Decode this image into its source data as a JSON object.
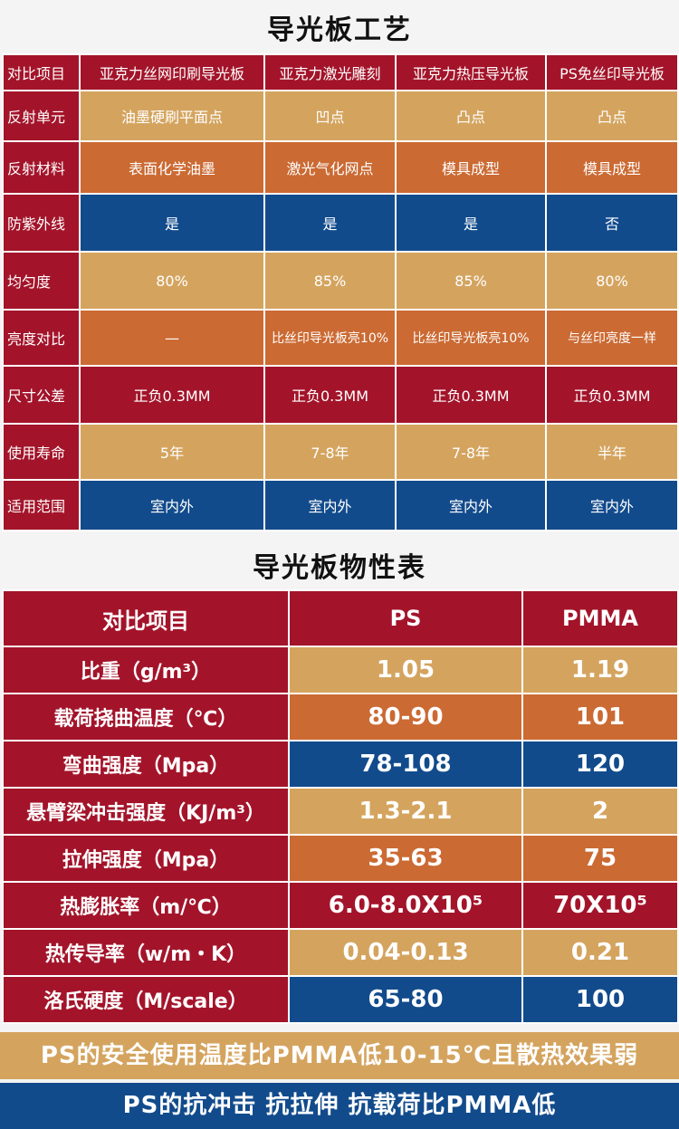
{
  "process_title": "导光板工艺",
  "process_table": {
    "headers": [
      "对比项目",
      "亚克力丝网印刷导光板",
      "亚克力激光雕刻",
      "亚克力热压导光板",
      "PS免丝印导光板"
    ],
    "rows": [
      {
        "label": "反射单元",
        "cells": [
          "油墨硬刷平面点",
          "凹点",
          "凸点",
          "凸点"
        ]
      },
      {
        "label": "反射材料",
        "cells": [
          "表面化学油墨",
          "激光气化网点",
          "模具成型",
          "模具成型"
        ]
      },
      {
        "label": "防紫外线",
        "cells": [
          "是",
          "是",
          "是",
          "否"
        ]
      },
      {
        "label": "均匀度",
        "cells": [
          "80%",
          "85%",
          "85%",
          "80%"
        ]
      },
      {
        "label": "亮度对比",
        "cells": [
          "—",
          "比丝印导光板亮10%",
          "比丝印导光板亮10%",
          "与丝印亮度一样"
        ]
      },
      {
        "label": "尺寸公差",
        "cells": [
          "正负0.3MM",
          "正负0.3MM",
          "正负0.3MM",
          "正负0.3MM"
        ]
      },
      {
        "label": "使用寿命",
        "cells": [
          "5年",
          "7-8年",
          "7-8年",
          "半年"
        ]
      },
      {
        "label": "适用范围",
        "cells": [
          "室内外",
          "室内外",
          "室内外",
          "室内外"
        ]
      }
    ]
  },
  "props_title": "导光板物性表",
  "props_table": {
    "headers": [
      "对比项目",
      "PS",
      "PMMA"
    ],
    "rows": [
      {
        "label": "比重（g/m³）",
        "ps": "1.05",
        "pmma": "1.19"
      },
      {
        "label": "载荷挠曲温度（℃）",
        "ps": "80-90",
        "pmma": "101"
      },
      {
        "label": "弯曲强度（Mpa）",
        "ps": "78-108",
        "pmma": "120"
      },
      {
        "label": "悬臂梁冲击强度（KJ/m³）",
        "ps": "1.3-2.1",
        "pmma": "2"
      },
      {
        "label": "拉伸强度（Mpa）",
        "ps": "35-63",
        "pmma": "75"
      },
      {
        "label": "热膨胀率（m/℃）",
        "ps": "6.0-8.0X10⁵",
        "pmma": "70X10⁵"
      },
      {
        "label": "热传导率（w/m・K）",
        "ps": "0.04-0.13",
        "pmma": "0.21"
      },
      {
        "label": "洛氏硬度（M/scale）",
        "ps": "65-80",
        "pmma": "100"
      }
    ]
  },
  "banner_1": "PS的安全使用温度比PMMA低10-15℃且散热效果弱",
  "banner_2": "PS的抗冲击 抗拉伸 抗载荷比PMMA低",
  "colors": {
    "red": "#a3142a",
    "sand": "#d4a45f",
    "orange": "#cb6a33",
    "blue": "#124b8c"
  }
}
